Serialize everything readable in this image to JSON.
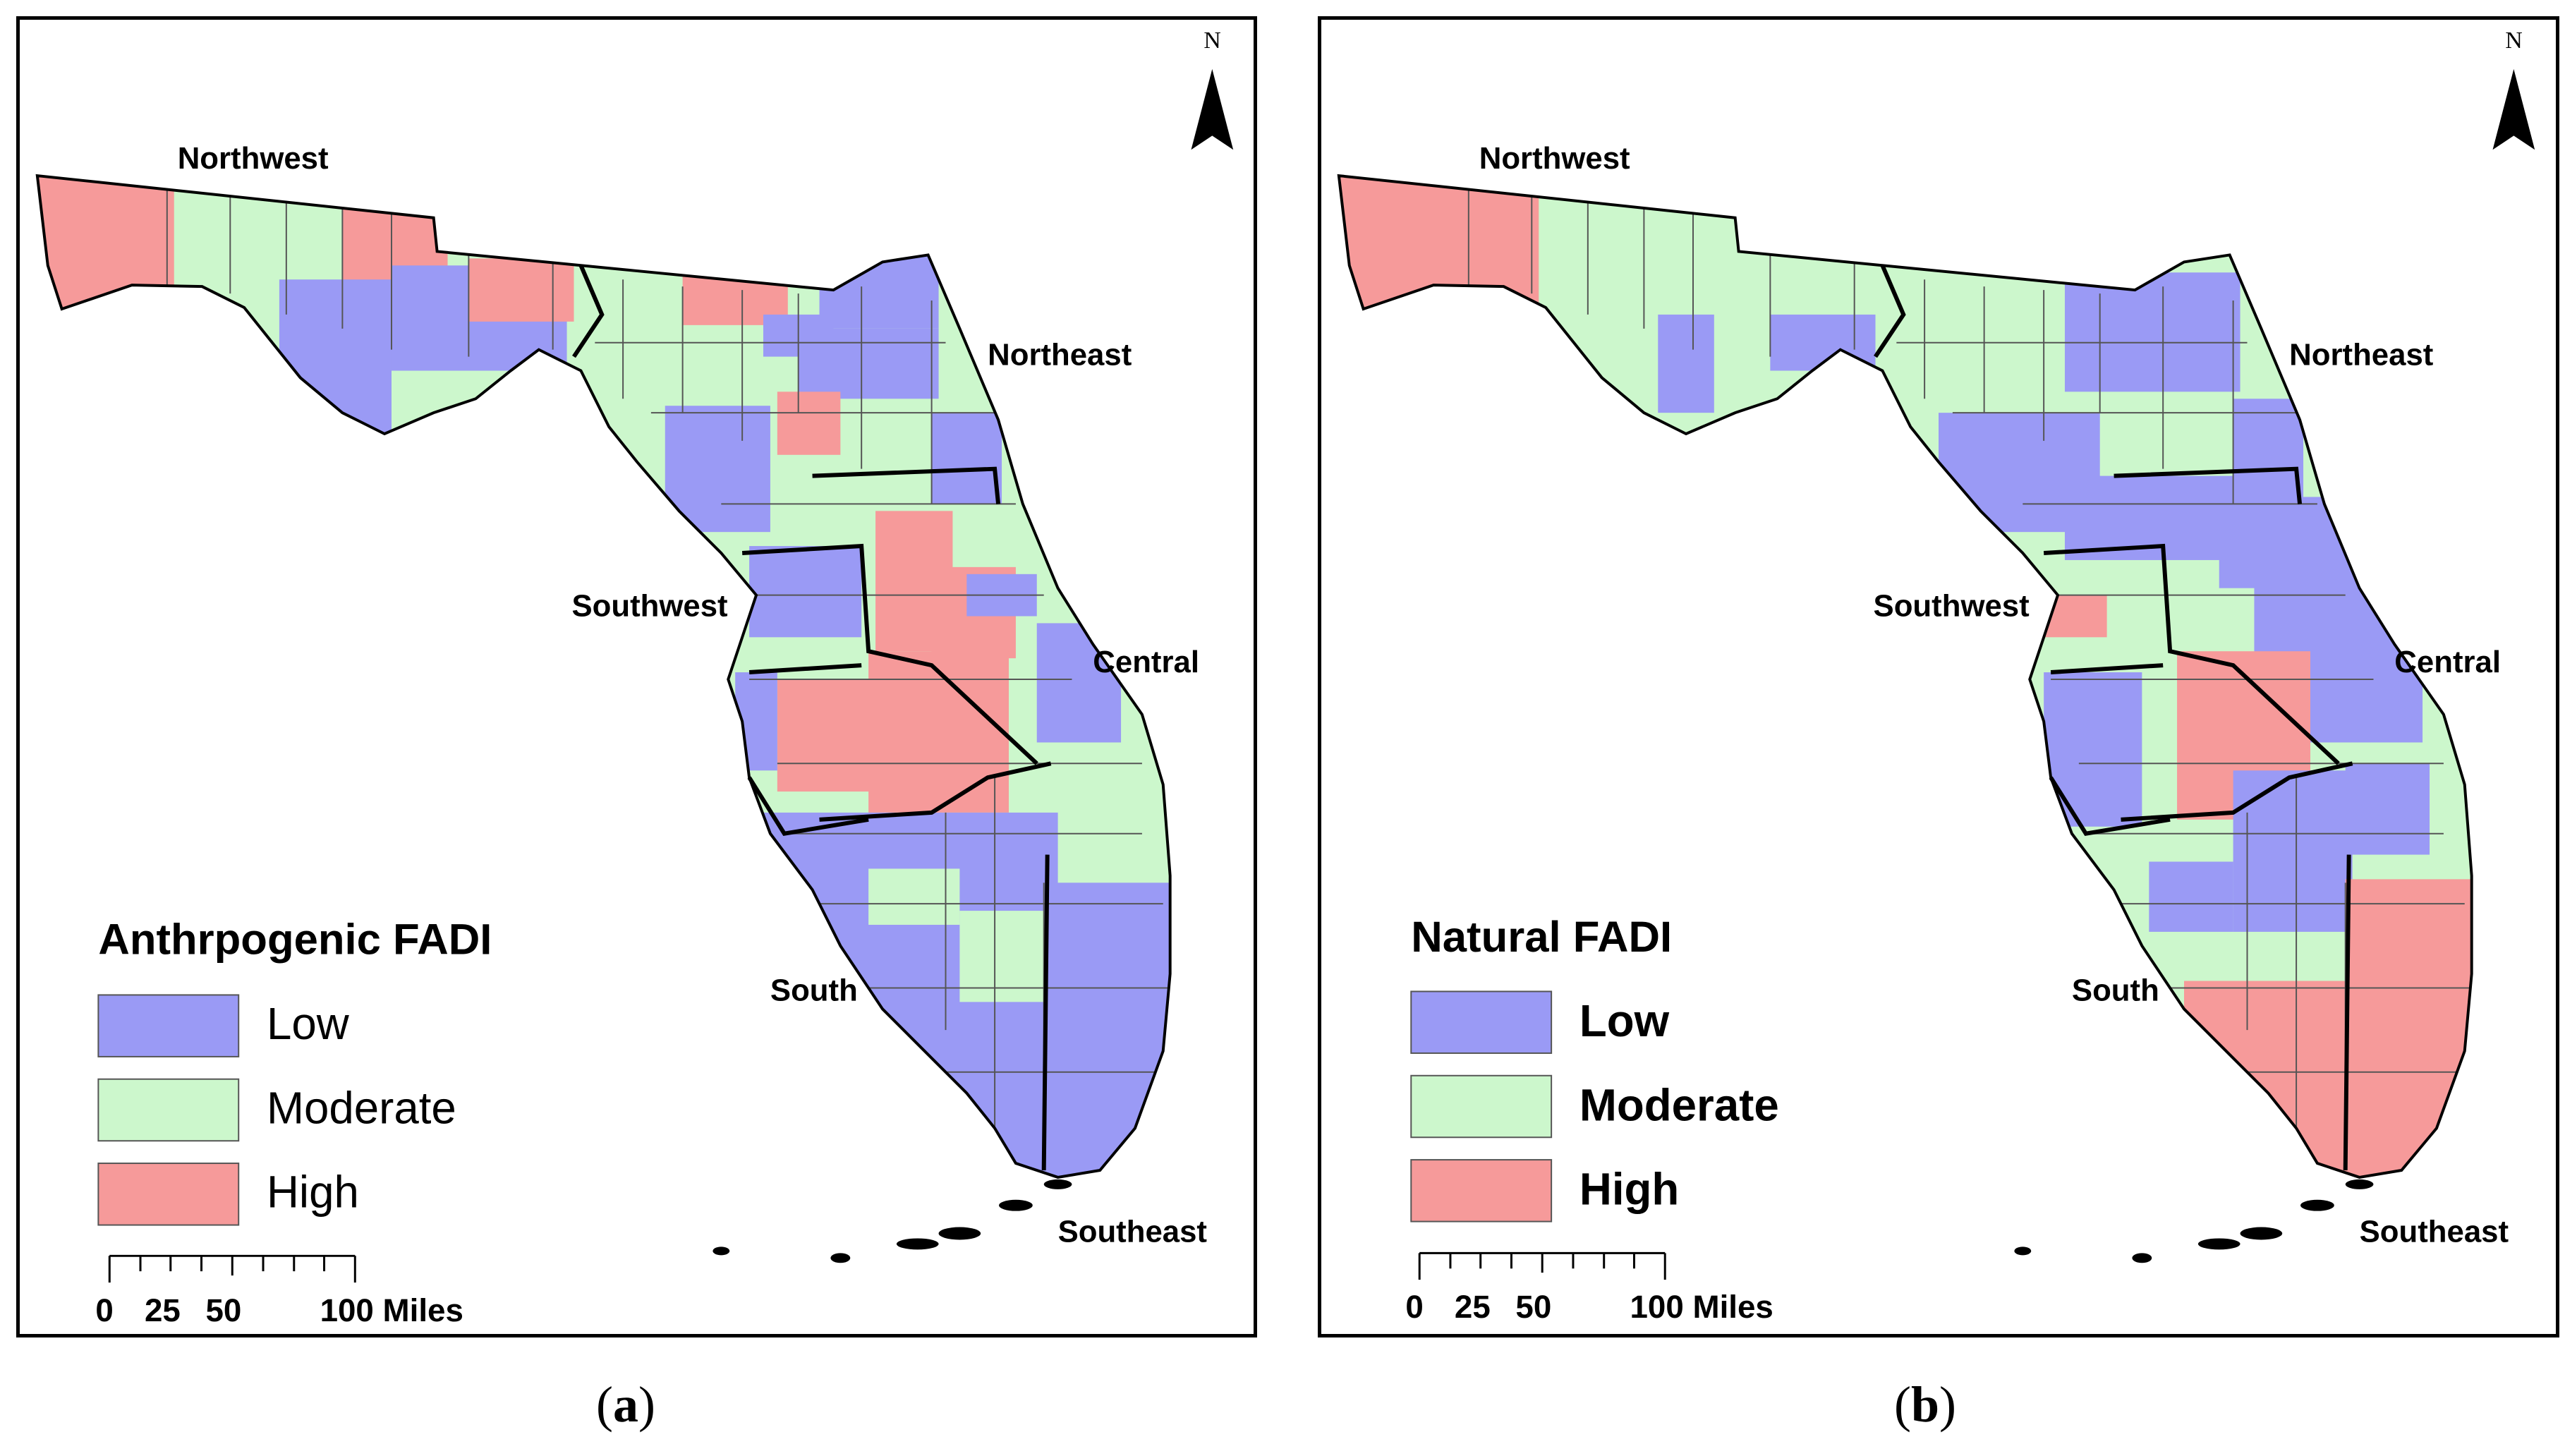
{
  "panels": [
    {
      "id": "a",
      "caption": "a",
      "legend": {
        "title": "Anthrpogenic FADI",
        "label_style": "regular",
        "items": [
          {
            "label": "Low",
            "color": "#9a9af5"
          },
          {
            "label": "Moderate",
            "color": "#ccf7cc"
          },
          {
            "label": "High",
            "color": "#f69a9a"
          }
        ]
      },
      "regions": {
        "northwest": {
          "label": "Northwest",
          "class": "mixed"
        },
        "northeast": {
          "label": "Northeast",
          "class": "mixed"
        },
        "central": {
          "label": "Central",
          "class": "mixed"
        },
        "southwest": {
          "label": "Southwest",
          "class": "mixed"
        },
        "south": {
          "label": "South",
          "class": "mostly-low"
        },
        "southeast": {
          "label": "Southeast",
          "class": "low"
        }
      },
      "scale": {
        "ticks": [
          "0",
          "25",
          "50",
          "100 Miles"
        ]
      },
      "north": "N"
    },
    {
      "id": "b",
      "caption": "b",
      "legend": {
        "title": "Natural FADI",
        "label_style": "bold",
        "items": [
          {
            "label": "Low",
            "color": "#9a9af5"
          },
          {
            "label": "Moderate",
            "color": "#ccf7cc"
          },
          {
            "label": "High",
            "color": "#f69a9a"
          }
        ]
      },
      "regions": {
        "northwest": {
          "label": "Northwest",
          "class": "mixed"
        },
        "northeast": {
          "label": "Northeast",
          "class": "mixed"
        },
        "central": {
          "label": "Central",
          "class": "mixed"
        },
        "southwest": {
          "label": "Southwest",
          "class": "mixed"
        },
        "south": {
          "label": "South",
          "class": "mixed"
        },
        "southeast": {
          "label": "Southeast",
          "class": "high"
        }
      },
      "scale": {
        "ticks": [
          "0",
          "25",
          "50",
          "100 Miles"
        ]
      },
      "north": "N"
    }
  ]
}
